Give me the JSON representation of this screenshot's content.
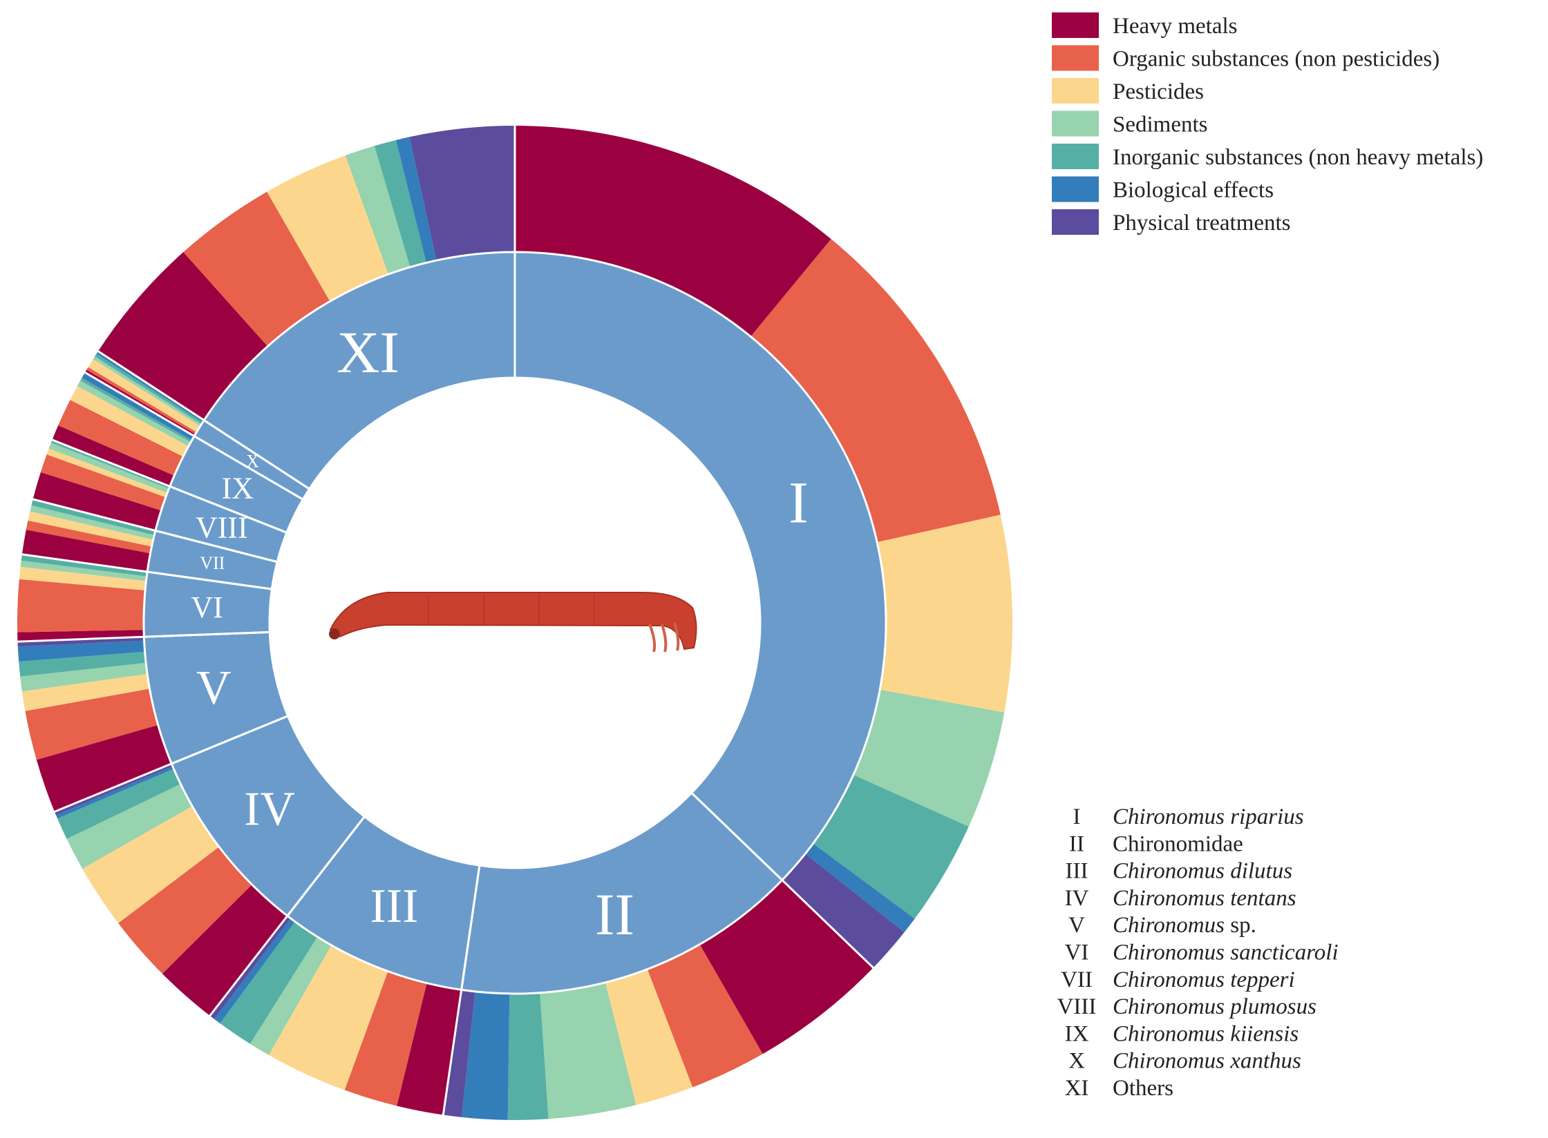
{
  "chart_data": {
    "type": "pie",
    "subtype": "sunburst",
    "colors": {
      "inner_ring": "#6a9bcb",
      "Heavy metals": "#9b0041",
      "Organic substances (non pesticides)": "#e8614a",
      "Pesticides": "#fcd68c",
      "Sediments": "#96d3ae",
      "Inorganic substances (non heavy metals)": "#56afa4",
      "Biological effects": "#347dbb",
      "Physical treatments": "#5c4c9d"
    },
    "legend": [
      "Heavy metals",
      "Organic substances (non pesticides)",
      "Pesticides",
      "Sediments",
      "Inorganic substances (non heavy metals)",
      "Biological effects",
      "Physical treatments"
    ],
    "legend_position": "top-right",
    "species_key": [
      {
        "num": "I",
        "name": "Chironomus riparius",
        "italic": true
      },
      {
        "num": "II",
        "name": "Chironomidae",
        "italic": false
      },
      {
        "num": "III",
        "name": "Chironomus dilutus",
        "italic": true
      },
      {
        "num": "IV",
        "name": "Chironomus tentans",
        "italic": true
      },
      {
        "num": "V",
        "name": "Chironomus",
        "suffix": " sp.",
        "italic": true
      },
      {
        "num": "VI",
        "name": "Chironomus sancticaroli",
        "italic": true
      },
      {
        "num": "VII",
        "name": "Chironomus tepperi",
        "italic": true
      },
      {
        "num": "VIII",
        "name": "Chironomus plumosus",
        "italic": true
      },
      {
        "num": "IX",
        "name": "Chironomus kiiensis",
        "italic": true
      },
      {
        "num": "X",
        "name": "Chironomus xanthus",
        "italic": true
      },
      {
        "num": "XI",
        "name": "Others",
        "italic": false
      }
    ],
    "groups": [
      {
        "label": "I",
        "share": 37.2,
        "segments": [
          16.0,
          15.4,
          9.3,
          5.6,
          5.0,
          0.8,
          2.2
        ]
      },
      {
        "label": "II",
        "share": 15.1,
        "segments": [
          7.6,
          4.2,
          3.2,
          4.8,
          2.2,
          2.5,
          1.0
        ]
      },
      {
        "label": "III",
        "share": 8.2,
        "segments": [
          2.6,
          3.0,
          4.6,
          1.2,
          2.0,
          0.4,
          0.3
        ]
      },
      {
        "label": "IV",
        "share": 8.3,
        "segments": [
          3.4,
          3.6,
          3.5,
          1.8,
          1.2,
          0.2,
          0.2
        ]
      },
      {
        "label": "V",
        "share": 5.6,
        "segments": [
          2.2,
          2.0,
          0.8,
          0.6,
          0.6,
          0.6,
          0.2
        ]
      },
      {
        "label": "VI",
        "share": 2.8,
        "segments": [
          0.3,
          1.7,
          0.4,
          0.2,
          0.2,
          0.0,
          0.0
        ]
      },
      {
        "label": "VII",
        "share": 1.8,
        "segments": [
          0.8,
          0.3,
          0.3,
          0.2,
          0.2,
          0.0,
          0.0
        ]
      },
      {
        "label": "VIII",
        "share": 2.0,
        "segments": [
          0.9,
          0.6,
          0.2,
          0.2,
          0.1,
          0.0,
          0.0
        ]
      },
      {
        "label": "IX",
        "share": 2.4,
        "segments": [
          0.5,
          0.9,
          0.5,
          0.2,
          0.1,
          0.2,
          0.0
        ]
      },
      {
        "label": "X",
        "share": 0.8,
        "segments": [
          0.1,
          0.1,
          0.3,
          0.1,
          0.1,
          0.1,
          0.0
        ]
      },
      {
        "label": "XI",
        "share": 15.8,
        "segments": [
          4.7,
          3.7,
          3.1,
          1.1,
          0.8,
          0.5,
          3.8
        ]
      }
    ]
  }
}
